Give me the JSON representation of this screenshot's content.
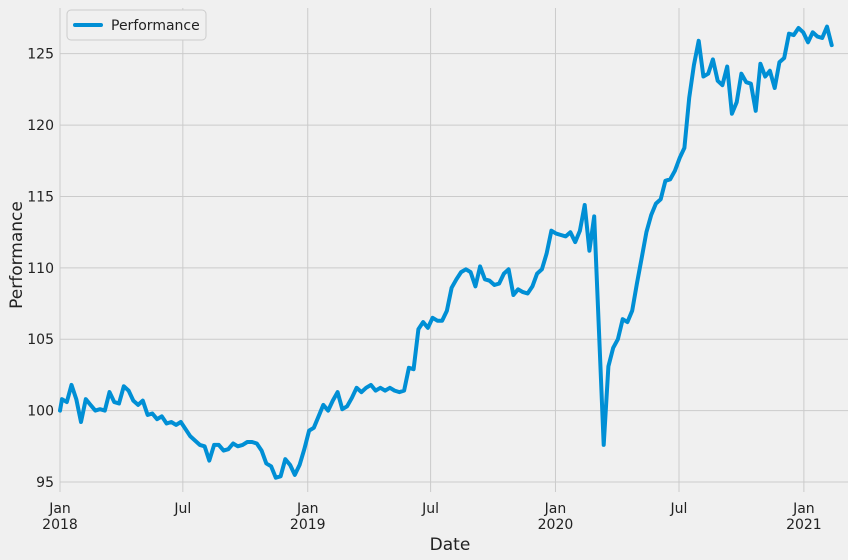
{
  "chart_data": {
    "type": "line",
    "title": "",
    "xlabel": "Date",
    "ylabel": "Performance",
    "x_range": [
      "2018-01-01",
      "2021-03-07"
    ],
    "ylim": [
      94.3,
      128.2
    ],
    "grid": true,
    "legend_position": "top-left",
    "y_ticks": [
      95,
      100,
      105,
      110,
      115,
      120,
      125
    ],
    "x_ticks": [
      {
        "date": "2018-01-01",
        "label": "Jan",
        "sublabel": "2018"
      },
      {
        "date": "2018-07-01",
        "label": "Jul",
        "sublabel": ""
      },
      {
        "date": "2019-01-01",
        "label": "Jan",
        "sublabel": "2019"
      },
      {
        "date": "2019-07-01",
        "label": "Jul",
        "sublabel": ""
      },
      {
        "date": "2020-01-01",
        "label": "Jan",
        "sublabel": "2020"
      },
      {
        "date": "2020-07-01",
        "label": "Jul",
        "sublabel": ""
      },
      {
        "date": "2021-01-01",
        "label": "Jan",
        "sublabel": "2021"
      }
    ],
    "series": [
      {
        "name": "Performance",
        "color": "#008fd5",
        "points": [
          [
            "2018-01-01",
            100.0
          ],
          [
            "2018-01-04",
            100.8
          ],
          [
            "2018-01-11",
            100.6
          ],
          [
            "2018-01-18",
            101.8
          ],
          [
            "2018-01-25",
            100.8
          ],
          [
            "2018-02-01",
            99.2
          ],
          [
            "2018-02-08",
            100.8
          ],
          [
            "2018-02-15",
            100.4
          ],
          [
            "2018-02-22",
            100.0
          ],
          [
            "2018-03-01",
            100.1
          ],
          [
            "2018-03-08",
            100.0
          ],
          [
            "2018-03-15",
            101.3
          ],
          [
            "2018-03-22",
            100.6
          ],
          [
            "2018-03-29",
            100.5
          ],
          [
            "2018-04-05",
            101.7
          ],
          [
            "2018-04-12",
            101.4
          ],
          [
            "2018-04-19",
            100.7
          ],
          [
            "2018-04-26",
            100.4
          ],
          [
            "2018-05-03",
            100.7
          ],
          [
            "2018-05-10",
            99.7
          ],
          [
            "2018-05-17",
            99.8
          ],
          [
            "2018-05-24",
            99.4
          ],
          [
            "2018-05-31",
            99.6
          ],
          [
            "2018-06-07",
            99.1
          ],
          [
            "2018-06-14",
            99.2
          ],
          [
            "2018-06-21",
            99.0
          ],
          [
            "2018-06-28",
            99.2
          ],
          [
            "2018-07-05",
            98.7
          ],
          [
            "2018-07-12",
            98.2
          ],
          [
            "2018-07-19",
            97.9
          ],
          [
            "2018-07-26",
            97.6
          ],
          [
            "2018-08-02",
            97.5
          ],
          [
            "2018-08-09",
            96.5
          ],
          [
            "2018-08-16",
            97.6
          ],
          [
            "2018-08-23",
            97.6
          ],
          [
            "2018-08-30",
            97.2
          ],
          [
            "2018-09-06",
            97.3
          ],
          [
            "2018-09-13",
            97.7
          ],
          [
            "2018-09-20",
            97.5
          ],
          [
            "2018-09-27",
            97.6
          ],
          [
            "2018-10-04",
            97.8
          ],
          [
            "2018-10-11",
            97.8
          ],
          [
            "2018-10-18",
            97.7
          ],
          [
            "2018-10-25",
            97.2
          ],
          [
            "2018-11-01",
            96.3
          ],
          [
            "2018-11-08",
            96.1
          ],
          [
            "2018-11-15",
            95.3
          ],
          [
            "2018-11-22",
            95.4
          ],
          [
            "2018-11-29",
            96.6
          ],
          [
            "2018-12-06",
            96.2
          ],
          [
            "2018-12-13",
            95.5
          ],
          [
            "2018-12-20",
            96.2
          ],
          [
            "2018-12-27",
            97.3
          ],
          [
            "2019-01-03",
            98.6
          ],
          [
            "2019-01-10",
            98.8
          ],
          [
            "2019-01-17",
            99.6
          ],
          [
            "2019-01-24",
            100.4
          ],
          [
            "2019-01-31",
            100.0
          ],
          [
            "2019-02-07",
            100.7
          ],
          [
            "2019-02-14",
            101.3
          ],
          [
            "2019-02-21",
            100.1
          ],
          [
            "2019-02-28",
            100.3
          ],
          [
            "2019-03-07",
            100.9
          ],
          [
            "2019-03-14",
            101.6
          ],
          [
            "2019-03-21",
            101.3
          ],
          [
            "2019-03-28",
            101.6
          ],
          [
            "2019-04-04",
            101.8
          ],
          [
            "2019-04-11",
            101.4
          ],
          [
            "2019-04-18",
            101.6
          ],
          [
            "2019-04-25",
            101.4
          ],
          [
            "2019-05-02",
            101.6
          ],
          [
            "2019-05-09",
            101.4
          ],
          [
            "2019-05-16",
            101.3
          ],
          [
            "2019-05-23",
            101.4
          ],
          [
            "2019-05-30",
            103.0
          ],
          [
            "2019-06-06",
            102.9
          ],
          [
            "2019-06-13",
            105.7
          ],
          [
            "2019-06-20",
            106.2
          ],
          [
            "2019-06-27",
            105.8
          ],
          [
            "2019-07-04",
            106.5
          ],
          [
            "2019-07-11",
            106.3
          ],
          [
            "2019-07-18",
            106.3
          ],
          [
            "2019-07-25",
            107.0
          ],
          [
            "2019-08-01",
            108.6
          ],
          [
            "2019-08-08",
            109.2
          ],
          [
            "2019-08-15",
            109.7
          ],
          [
            "2019-08-22",
            109.9
          ],
          [
            "2019-08-29",
            109.7
          ],
          [
            "2019-09-05",
            108.7
          ],
          [
            "2019-09-12",
            110.1
          ],
          [
            "2019-09-19",
            109.2
          ],
          [
            "2019-09-26",
            109.1
          ],
          [
            "2019-10-03",
            108.8
          ],
          [
            "2019-10-10",
            108.9
          ],
          [
            "2019-10-17",
            109.6
          ],
          [
            "2019-10-24",
            109.9
          ],
          [
            "2019-10-31",
            108.1
          ],
          [
            "2019-11-07",
            108.5
          ],
          [
            "2019-11-14",
            108.3
          ],
          [
            "2019-11-21",
            108.2
          ],
          [
            "2019-11-28",
            108.7
          ],
          [
            "2019-12-05",
            109.6
          ],
          [
            "2019-12-12",
            109.9
          ],
          [
            "2019-12-19",
            111.0
          ],
          [
            "2019-12-26",
            112.6
          ],
          [
            "2020-01-02",
            112.4
          ],
          [
            "2020-01-09",
            112.3
          ],
          [
            "2020-01-16",
            112.2
          ],
          [
            "2020-01-23",
            112.5
          ],
          [
            "2020-01-30",
            111.8
          ],
          [
            "2020-02-06",
            112.6
          ],
          [
            "2020-02-13",
            114.4
          ],
          [
            "2020-02-20",
            111.2
          ],
          [
            "2020-02-27",
            113.6
          ],
          [
            "2020-03-05",
            105.7
          ],
          [
            "2020-03-12",
            97.6
          ],
          [
            "2020-03-19",
            103.1
          ],
          [
            "2020-03-26",
            104.4
          ],
          [
            "2020-04-02",
            105.0
          ],
          [
            "2020-04-09",
            106.4
          ],
          [
            "2020-04-16",
            106.2
          ],
          [
            "2020-04-23",
            107.0
          ],
          [
            "2020-04-30",
            108.9
          ],
          [
            "2020-05-07",
            110.7
          ],
          [
            "2020-05-14",
            112.5
          ],
          [
            "2020-05-21",
            113.7
          ],
          [
            "2020-05-28",
            114.5
          ],
          [
            "2020-06-04",
            114.8
          ],
          [
            "2020-06-11",
            116.1
          ],
          [
            "2020-06-18",
            116.2
          ],
          [
            "2020-06-25",
            116.8
          ],
          [
            "2020-07-02",
            117.7
          ],
          [
            "2020-07-09",
            118.4
          ],
          [
            "2020-07-16",
            121.9
          ],
          [
            "2020-07-23",
            124.2
          ],
          [
            "2020-07-30",
            125.9
          ],
          [
            "2020-08-06",
            123.4
          ],
          [
            "2020-08-13",
            123.6
          ],
          [
            "2020-08-20",
            124.6
          ],
          [
            "2020-08-27",
            123.1
          ],
          [
            "2020-09-03",
            122.8
          ],
          [
            "2020-09-10",
            124.1
          ],
          [
            "2020-09-17",
            120.8
          ],
          [
            "2020-09-24",
            121.6
          ],
          [
            "2020-10-01",
            123.6
          ],
          [
            "2020-10-08",
            123.0
          ],
          [
            "2020-10-15",
            122.9
          ],
          [
            "2020-10-22",
            121.0
          ],
          [
            "2020-10-29",
            124.3
          ],
          [
            "2020-11-05",
            123.4
          ],
          [
            "2020-11-12",
            123.8
          ],
          [
            "2020-11-19",
            122.6
          ],
          [
            "2020-11-26",
            124.4
          ],
          [
            "2020-12-03",
            124.7
          ],
          [
            "2020-12-10",
            126.4
          ],
          [
            "2020-12-17",
            126.3
          ],
          [
            "2020-12-24",
            126.8
          ],
          [
            "2020-12-31",
            126.5
          ],
          [
            "2021-01-07",
            125.8
          ],
          [
            "2021-01-14",
            126.5
          ],
          [
            "2021-01-21",
            126.2
          ],
          [
            "2021-01-28",
            126.1
          ],
          [
            "2021-02-04",
            126.9
          ],
          [
            "2021-02-11",
            125.6
          ]
        ]
      }
    ]
  }
}
